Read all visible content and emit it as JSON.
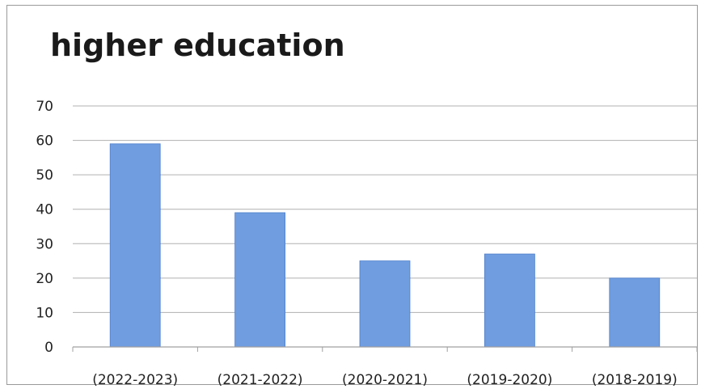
{
  "chart_data": {
    "type": "bar",
    "title": "higher education",
    "xlabel": "",
    "ylabel": "",
    "categories": [
      "(2022-2023)",
      "(2021-2022)",
      "(2020-2021)",
      "(2019-2020)",
      "(2018-2019)"
    ],
    "values": [
      59,
      39,
      25,
      27,
      20
    ],
    "ylim": [
      0,
      70
    ],
    "yticks": [
      "0",
      "10",
      "20",
      "30",
      "40",
      "50",
      "60",
      "70"
    ],
    "grid": true,
    "legend": "none",
    "colors": {
      "bar": "#6f9de0",
      "bar_edge": "#4f7fcc",
      "grid": "#b0b0b0",
      "axis": "#a0a0a0"
    }
  }
}
